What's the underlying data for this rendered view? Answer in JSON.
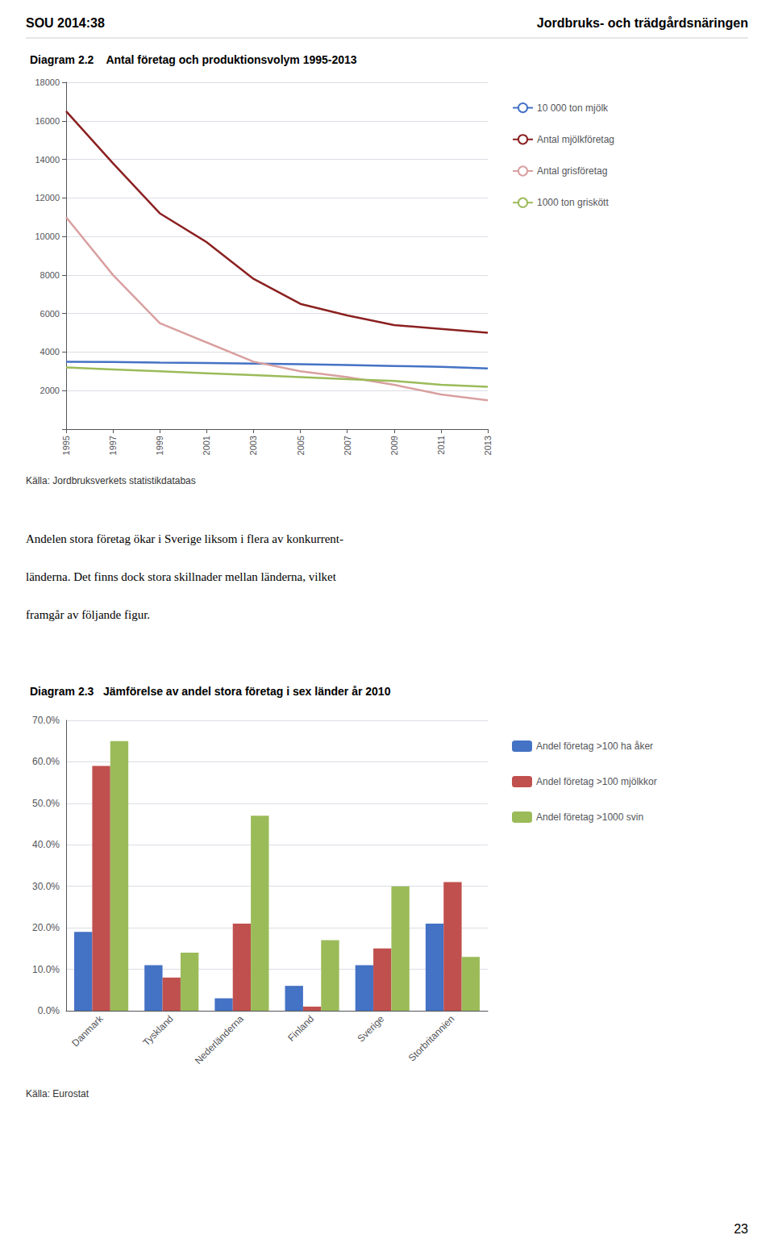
{
  "chart_data": [
    {
      "type": "line",
      "title": "Diagram 2.2    Antal företag och produktionsvolym 1995-2013",
      "x": [
        1995,
        1997,
        1999,
        2001,
        2003,
        2005,
        2007,
        2009,
        2011,
        2013
      ],
      "xlim": [
        1995,
        2013
      ],
      "xticks": [
        1995,
        1997,
        1999,
        2001,
        2003,
        2005,
        2007,
        2009,
        2011,
        2013
      ],
      "ylim": [
        0,
        18000
      ],
      "yticks": [
        2000,
        4000,
        6000,
        8000,
        10000,
        12000,
        14000,
        16000,
        18000
      ],
      "grid": true,
      "legend": "right",
      "series": [
        {
          "name": "10 000 ton mjölk",
          "color": "#4472C4",
          "values": [
            3500,
            3480,
            3450,
            3430,
            3400,
            3370,
            3330,
            3280,
            3230,
            3150
          ]
        },
        {
          "name": "Antal mjölkföretag",
          "color": "#8B2020",
          "values": [
            16500,
            13800,
            11200,
            9700,
            7800,
            6500,
            5900,
            5400,
            5200,
            5000
          ]
        },
        {
          "name": "Antal grisföretag",
          "color": "#D9A0A0",
          "values": [
            11000,
            8000,
            5500,
            4500,
            3500,
            3000,
            2700,
            2300,
            1800,
            1500
          ]
        },
        {
          "name": "1000 ton griskött",
          "color": "#9BBB59",
          "values": [
            3200,
            3100,
            3000,
            2900,
            2800,
            2700,
            2600,
            2500,
            2300,
            2200
          ]
        }
      ],
      "annotations": [
        "SOU 2014:38",
        "Jordbruks- och trädgårdsnäringen",
        "Källa: Jordbruksverkets statistikdatabas",
        "Andelen stora företag ökar i Sverige liksom i flera av konkurrent-",
        "länderna. Det finns dock stora skillnader mellan länderna, vilket",
        "framgår av följande figur."
      ]
    },
    {
      "type": "bar",
      "title": "Diagram 2.3   Jämförelse av andel stora företag i sex länder år 2010",
      "categories": [
        "Danmark",
        "Tyskland",
        "Nederländerna",
        "Finland",
        "Sverige",
        "Storbritannien"
      ],
      "ylim": [
        0,
        0.7
      ],
      "yticks": [
        {
          "value": 0.0,
          "label": "0.0%"
        },
        {
          "value": 0.1,
          "label": "10.0%"
        },
        {
          "value": 0.2,
          "label": "20.0%"
        },
        {
          "value": 0.3,
          "label": "30.0%"
        },
        {
          "value": 0.4,
          "label": "40.0%"
        },
        {
          "value": 0.5,
          "label": "50.0%"
        },
        {
          "value": 0.6,
          "label": "60.0%"
        },
        {
          "value": 0.7,
          "label": "70.0%"
        }
      ],
      "grid": true,
      "legend": "right",
      "series": [
        {
          "name": "Andel företag >100 ha åker",
          "color": "#4472C4",
          "values": [
            0.19,
            0.11,
            0.03,
            0.06,
            0.11,
            0.21
          ]
        },
        {
          "name": "Andel företag >100 mjölkkor",
          "color": "#C0504D",
          "values": [
            0.59,
            0.08,
            0.21,
            0.01,
            0.15,
            0.31
          ]
        },
        {
          "name": "Andel företag >1000 svin",
          "color": "#9BBB59",
          "values": [
            0.65,
            0.14,
            0.47,
            0.17,
            0.3,
            0.13
          ]
        }
      ],
      "annotations": [
        "Källa: Eurostat",
        "23"
      ]
    }
  ]
}
